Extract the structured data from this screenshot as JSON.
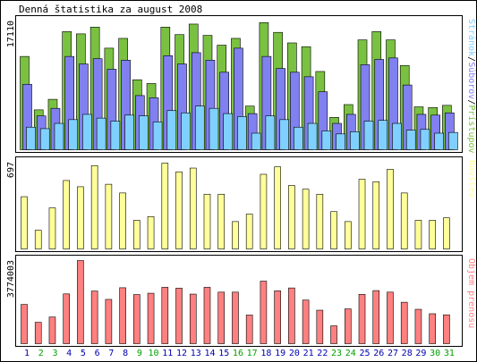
{
  "chart_data": {
    "type": "bar",
    "title": "Denná štatistika za august 2008",
    "categories": [
      "1",
      "2",
      "3",
      "4",
      "5",
      "6",
      "7",
      "8",
      "9",
      "10",
      "11",
      "12",
      "13",
      "14",
      "15",
      "16",
      "17",
      "18",
      "19",
      "20",
      "21",
      "22",
      "23",
      "24",
      "25",
      "26",
      "27",
      "28",
      "29",
      "30",
      "31"
    ],
    "weekend_days": [
      "2",
      "3",
      "9",
      "10",
      "16",
      "17",
      "23",
      "24",
      "30",
      "31"
    ],
    "panels": [
      {
        "name": "traffic",
        "ymax_label": "17110",
        "ylim": [
          0,
          17110
        ],
        "legend": [
          "Stránok",
          "/",
          "Súborov",
          "/",
          "Prístupov"
        ],
        "series": [
          {
            "name": "Prístupov",
            "color": "#7ac142",
            "values": [
              12400,
              5300,
              6700,
              15700,
              15400,
              16300,
              13500,
              14800,
              9300,
              8800,
              16300,
              15300,
              16700,
              15200,
              13900,
              14800,
              5800,
              16900,
              15600,
              14200,
              13700,
              10400,
              4300,
              6000,
              14600,
              15700,
              14600,
              11200,
              5700,
              5600,
              5900
            ]
          },
          {
            "name": "Súborov",
            "color": "#8080f0",
            "values": [
              8700,
              4500,
              5500,
              12400,
              11400,
              12100,
              10700,
              11900,
              7200,
              6900,
              12500,
              11400,
              12900,
              11900,
              10300,
              13500,
              4800,
              12400,
              10800,
              10300,
              9700,
              7700,
              3500,
              4700,
              11300,
              12000,
              12200,
              8600,
              4700,
              4600,
              4900
            ]
          },
          {
            "name": "Stránok",
            "color": "#80d0ff",
            "values": [
              3000,
              2800,
              3500,
              4000,
              4700,
              4200,
              3800,
              4600,
              4500,
              3700,
              5200,
              4900,
              5800,
              5500,
              4800,
              4400,
              2200,
              4500,
              4000,
              3000,
              3500,
              2500,
              2100,
              2400,
              3800,
              3900,
              3500,
              2600,
              2700,
              2200,
              2300
            ]
          }
        ]
      },
      {
        "name": "visits",
        "ymax_label": "697",
        "ylim": [
          0,
          697
        ],
        "legend": [
          "Návštev"
        ],
        "series": [
          {
            "name": "Návštev",
            "color": "#ffff99",
            "values": [
              420,
              150,
              330,
              550,
              500,
              670,
              520,
              450,
              230,
              260,
              690,
              620,
              650,
              440,
              440,
              220,
              280,
              600,
              660,
              510,
              480,
              440,
              300,
              220,
              560,
              540,
              640,
              450,
              230,
              230,
              250
            ]
          }
        ]
      },
      {
        "name": "volume",
        "ymax_label": "3774003",
        "ylim": [
          0,
          3774003
        ],
        "legend": [
          "Objem prenosu"
        ],
        "series": [
          {
            "name": "Objem prenosu",
            "color": "#ff8080",
            "values": [
              1780000,
              970000,
              1210000,
              2260000,
              3774000,
              2390000,
              2010000,
              2540000,
              2230000,
              2290000,
              2560000,
              2520000,
              2250000,
              2560000,
              2340000,
              2340000,
              1300000,
              2840000,
              2400000,
              2530000,
              1980000,
              1520000,
              810000,
              1580000,
              2240000,
              2410000,
              2340000,
              1880000,
              1560000,
              1360000,
              1310000
            ]
          }
        ]
      }
    ],
    "colors": {
      "weekday_label": "#0000b0",
      "weekend_label": "#00a000",
      "border": "#000000",
      "bar_outline": "#000000"
    }
  }
}
